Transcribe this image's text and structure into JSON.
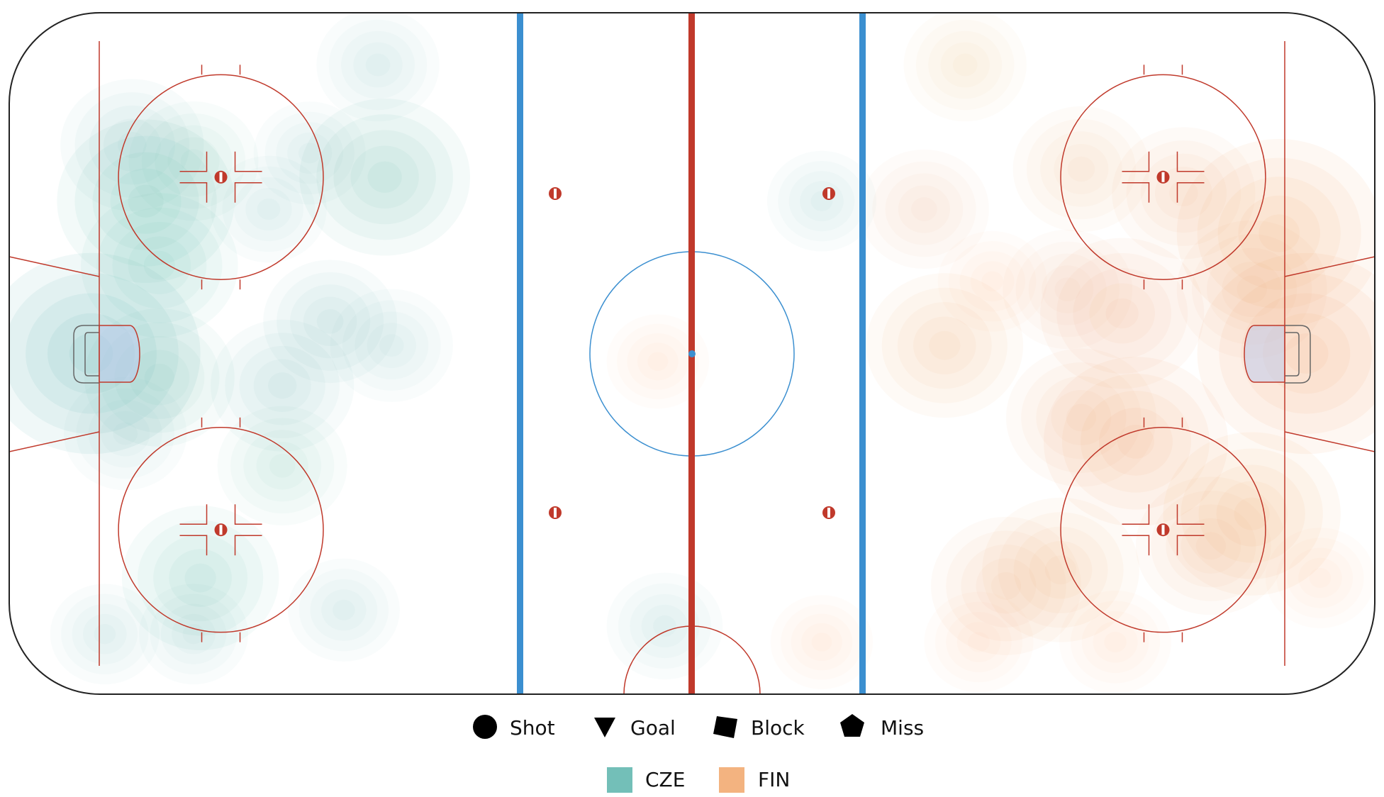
{
  "chart_data": {
    "type": "heatmap",
    "title": "",
    "marker_legend": [
      {
        "label": "Shot",
        "icon": "circle-icon"
      },
      {
        "label": "Goal",
        "icon": "triangle-down-icon"
      },
      {
        "label": "Block",
        "icon": "square-icon"
      },
      {
        "label": "Miss",
        "icon": "pentagon-icon"
      }
    ],
    "series": [
      {
        "name": "CZE",
        "color": "#5ab4ac",
        "hotspots": [
          {
            "x": -88,
            "y": 0,
            "density": 1.0
          },
          {
            "x": -78,
            "y": -3,
            "density": 0.5
          },
          {
            "x": -80,
            "y": 19,
            "density": 0.7
          },
          {
            "x": -78,
            "y": 11,
            "density": 0.55
          },
          {
            "x": -82,
            "y": 26,
            "density": 0.45
          },
          {
            "x": -73,
            "y": 24,
            "density": 0.35
          },
          {
            "x": -45,
            "y": 22,
            "density": 0.65
          },
          {
            "x": -46,
            "y": 36,
            "density": 0.3
          },
          {
            "x": -56,
            "y": 25,
            "density": 0.22
          },
          {
            "x": -62,
            "y": 18,
            "density": 0.25
          },
          {
            "x": -60,
            "y": -4,
            "density": 0.45
          },
          {
            "x": -53,
            "y": 4,
            "density": 0.38
          },
          {
            "x": -44,
            "y": 1,
            "density": 0.3
          },
          {
            "x": -60,
            "y": -14,
            "density": 0.35
          },
          {
            "x": -72,
            "y": -28,
            "density": 0.55
          },
          {
            "x": -83,
            "y": -10,
            "density": 0.3
          },
          {
            "x": -86,
            "y": -35,
            "density": 0.2
          },
          {
            "x": -73,
            "y": -35,
            "density": 0.2
          },
          {
            "x": -51,
            "y": -32,
            "density": 0.22
          },
          {
            "x": -4,
            "y": -34,
            "density": 0.25
          },
          {
            "x": 19,
            "y": 19,
            "density": 0.2
          }
        ]
      },
      {
        "name": "FIN",
        "color": "#f1a66a",
        "hotspots": [
          {
            "x": 90,
            "y": 0,
            "density": 1.0
          },
          {
            "x": 86,
            "y": 15,
            "density": 0.9
          },
          {
            "x": 82,
            "y": 8,
            "density": 0.5
          },
          {
            "x": 72,
            "y": 20,
            "density": 0.45
          },
          {
            "x": 57,
            "y": 23,
            "density": 0.4
          },
          {
            "x": 63,
            "y": 5,
            "density": 0.6
          },
          {
            "x": 55,
            "y": 8,
            "density": 0.35
          },
          {
            "x": 37,
            "y": 1,
            "density": 0.55
          },
          {
            "x": 65,
            "y": -11,
            "density": 0.75
          },
          {
            "x": 57,
            "y": -8,
            "density": 0.5
          },
          {
            "x": 82,
            "y": -20,
            "density": 0.7
          },
          {
            "x": 76,
            "y": -24,
            "density": 0.5
          },
          {
            "x": 54,
            "y": -27,
            "density": 0.55
          },
          {
            "x": 46,
            "y": -29,
            "density": 0.5
          },
          {
            "x": 34,
            "y": 18,
            "density": 0.35
          },
          {
            "x": 40,
            "y": 36,
            "density": 0.3
          },
          {
            "x": 62,
            "y": -36,
            "density": 0.22
          },
          {
            "x": 42,
            "y": -36,
            "density": 0.2
          },
          {
            "x": -5,
            "y": -1,
            "density": 0.15
          },
          {
            "x": 19,
            "y": -36,
            "density": 0.15
          },
          {
            "x": 92,
            "y": -28,
            "density": 0.2
          },
          {
            "x": 44,
            "y": 9,
            "density": 0.2
          }
        ]
      }
    ]
  }
}
